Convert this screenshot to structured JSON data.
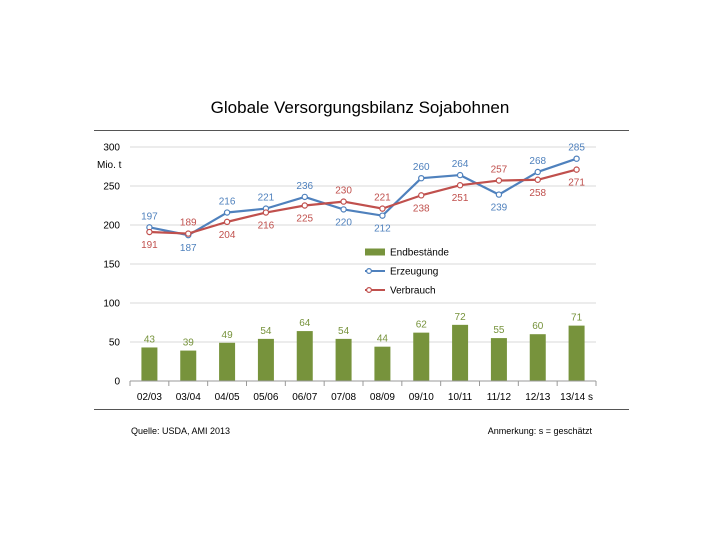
{
  "title": "Globale Versorgungsbilanz Sojabohnen",
  "source": "Quelle: USDA, AMI 2013",
  "remark": "Anmerkung: s = geschätzt",
  "chart_data": {
    "type": "bar+line",
    "ylabel": "Mio. t",
    "ylim": [
      0,
      300
    ],
    "yticks": [
      0,
      50,
      100,
      150,
      200,
      250,
      300
    ],
    "grid": true,
    "legend_position": "center-right",
    "categories": [
      "02/03",
      "03/04",
      "04/05",
      "05/06",
      "06/07",
      "07/08",
      "08/09",
      "09/10",
      "10/11",
      "11/12",
      "12/13",
      "13/14 s"
    ],
    "series": [
      {
        "name": "Endbestände",
        "type": "bar",
        "color": "#77933c",
        "values": [
          43,
          39,
          49,
          54,
          64,
          54,
          44,
          62,
          72,
          55,
          60,
          71
        ]
      },
      {
        "name": "Erzeugung",
        "type": "line",
        "color": "#4f81bd",
        "values": [
          197,
          187,
          216,
          221,
          236,
          220,
          212,
          260,
          264,
          239,
          268,
          285
        ]
      },
      {
        "name": "Verbrauch",
        "type": "line",
        "color": "#c0504d",
        "values": [
          191,
          189,
          204,
          216,
          225,
          230,
          221,
          238,
          251,
          257,
          258,
          271
        ]
      }
    ]
  }
}
